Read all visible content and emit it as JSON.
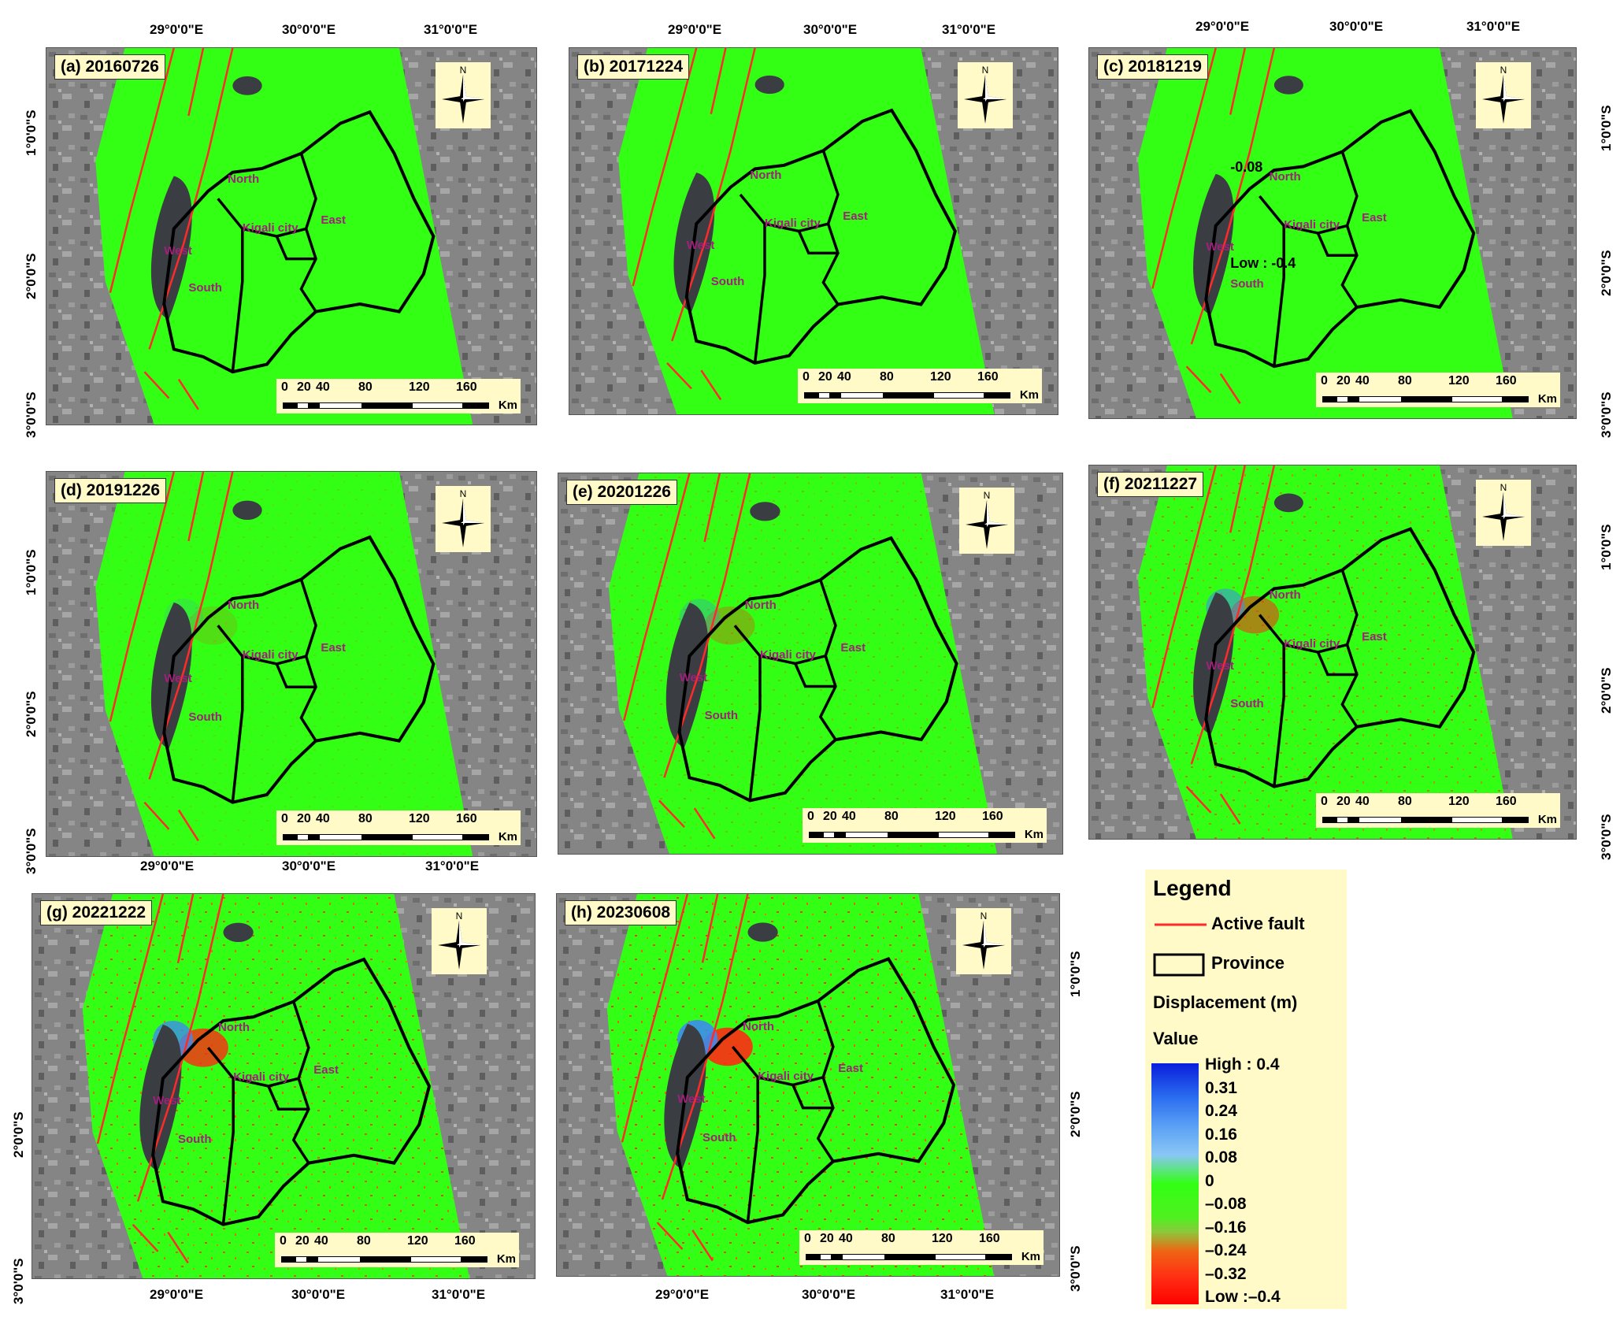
{
  "axis_labels": {
    "lon": [
      "29°0'0\"E",
      "30°0'0\"E",
      "31°0'0\"E"
    ],
    "lat": [
      "1°0'0\"S",
      "2°0'0\"S",
      "3°0'0\"S"
    ]
  },
  "panels": [
    {
      "label": "(a) 20160726"
    },
    {
      "label": "(b) 20171224"
    },
    {
      "label": "(c) 20181219"
    },
    {
      "label": "(d) 20191226"
    },
    {
      "label": "(e) 20201226"
    },
    {
      "label": "(f) 20211227"
    },
    {
      "label": "(g) 20221222"
    },
    {
      "label": "(h) 20230608"
    }
  ],
  "provinces": [
    "North",
    "Kigali city",
    "East",
    "West",
    "South"
  ],
  "scale_bar": {
    "ticks": [
      "0",
      "20",
      "40",
      "80",
      "120",
      "160"
    ],
    "unit": "Km"
  },
  "panel_c_overlay": {
    "value": "-0.08",
    "low": "Low : -0.4"
  },
  "legend": {
    "title": "Legend",
    "active_fault": "Active fault",
    "province": "Province",
    "displacement": "Displacement (m)",
    "value": "Value",
    "ramp_labels": [
      "High : 0.4",
      "0.31",
      "0.24",
      "0.16",
      "0.08",
      "0",
      "–0.08",
      "–0.16",
      "–0.24",
      "–0.32",
      "Low :–0.4"
    ],
    "colors": {
      "high": "#0a1edc",
      "zero": "#32ff14",
      "low": "#ff0000",
      "fault": "#ff2a2a"
    }
  }
}
